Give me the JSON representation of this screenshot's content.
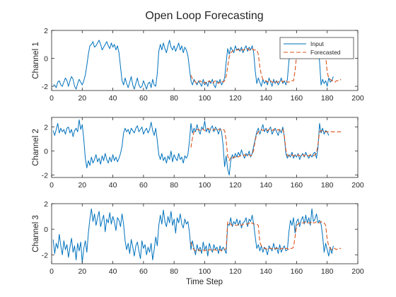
{
  "chart_data": {
    "type": "line",
    "title": "Open Loop Forecasting",
    "xlabel": "Time Step",
    "xlim": [
      0,
      200
    ],
    "xticks": [
      0,
      20,
      40,
      60,
      80,
      100,
      120,
      140,
      160,
      180,
      200
    ],
    "legend": {
      "position": "top-right",
      "subplot": 1,
      "entries": [
        "Input",
        "Forecasted"
      ]
    },
    "colors": {
      "input": "#0072BD",
      "forecast": "#D95319",
      "axis": "#262626",
      "background": "#ffffff"
    },
    "subplots": [
      {
        "ylabel": "Channel 1",
        "ylim": [
          -2.3,
          2
        ],
        "yticks": [
          -2,
          0,
          2
        ],
        "series": [
          {
            "name": "Input",
            "x_start": 1,
            "step": 1,
            "values": [
              -1.9,
              -1.9,
              -2.1,
              -1.7,
              -1.6,
              -1.9,
              -2.0,
              -1.7,
              -1.4,
              -1.6,
              -2.0,
              -1.6,
              -1.3,
              -1.5,
              -2.0,
              -2.2,
              -1.8,
              -1.5,
              -1.7,
              -1.9,
              -1.6,
              -1.2,
              -0.5,
              0.3,
              0.9,
              1.0,
              1.2,
              0.8,
              0.9,
              1.1,
              1.3,
              1.0,
              0.6,
              0.8,
              1.0,
              1.2,
              0.9,
              0.7,
              1.1,
              0.8,
              1.0,
              0.6,
              0.9,
              0.4,
              -0.6,
              -1.6,
              -1.9,
              -1.4,
              -1.8,
              -2.1,
              -1.7,
              -1.3,
              -1.9,
              -2.2,
              -1.8,
              -1.4,
              -1.9,
              -2.1,
              -2.0,
              -1.6,
              -1.9,
              -2.2,
              -1.8,
              -1.7,
              -2.1,
              -1.5,
              -1.9,
              -2.0,
              -1.1,
              0.5,
              1.0,
              0.6,
              1.1,
              0.7,
              0.4,
              0.9,
              1.3,
              0.8,
              0.6,
              0.9,
              0.5,
              0.8,
              1.1,
              0.6,
              0.9,
              0.4,
              0.8,
              0.6,
              0.2,
              -0.7,
              -1.6,
              -1.9,
              -1.5,
              -1.7,
              -1.9,
              -1.6,
              -1.8,
              -2.0,
              -1.5,
              -1.9,
              -1.7,
              -2.0,
              -1.6,
              -1.8,
              -1.5,
              -1.9,
              -2.1,
              -1.6,
              -1.8,
              -1.5,
              -1.9,
              -1.7,
              -1.4,
              -0.3,
              0.7,
              0.3,
              0.8,
              0.6,
              0.4,
              0.9,
              0.6,
              0.7,
              0.5,
              0.8,
              0.4,
              0.7,
              0.9,
              0.5,
              0.8,
              0.6,
              0.9,
              0.4,
              -0.9,
              -1.8,
              -1.4,
              -1.7,
              -2.0,
              -1.5,
              -1.8,
              -1.6,
              -1.9,
              -1.4,
              -1.7,
              -2.0,
              -1.5,
              -1.8,
              -1.6,
              -1.9,
              -1.7,
              -1.4,
              -1.8,
              -1.6,
              -1.9,
              -1.5,
              -0.2,
              0.7,
              0.4,
              0.8,
              0.6,
              0.3,
              0.7,
              0.5,
              0.9,
              0.4,
              0.7,
              0.6,
              0.8,
              0.4,
              0.7,
              0.5,
              0.8,
              0.6,
              0.3,
              0.7,
              -0.2,
              -1.9,
              -1.5,
              -1.8,
              -1.6,
              -2.0,
              -1.4,
              -1.7,
              -1.6,
              -1.3
            ]
          },
          {
            "name": "Forecasted",
            "x_start": 91,
            "step": 1,
            "values": [
              -1.2,
              -1.5,
              -1.6,
              -1.7,
              -1.8,
              -1.7,
              -1.6,
              -1.7,
              -1.8,
              -1.7,
              -1.8,
              -1.7,
              -1.6,
              -1.7,
              -1.8,
              -1.7,
              -1.6,
              -1.7,
              -1.8,
              -1.7,
              -1.6,
              -1.7,
              -1.6,
              -1.3,
              -0.6,
              0.1,
              0.4,
              0.5,
              0.6,
              0.6,
              0.6,
              0.6,
              0.7,
              0.6,
              0.6,
              0.6,
              0.7,
              0.7,
              0.6,
              0.6,
              0.7,
              0.6,
              0.6,
              0.6,
              0.3,
              -0.6,
              -1.2,
              -1.5,
              -1.6,
              -1.6,
              -1.7,
              -1.6,
              -1.6,
              -1.7,
              -1.7,
              -1.6,
              -1.7,
              -1.7,
              -1.6,
              -1.6,
              -1.7,
              -1.6,
              -1.6,
              -1.7,
              -1.7,
              -1.6,
              -1.6,
              -1.6,
              -0.9,
              0.2,
              0.5,
              0.6,
              0.6,
              0.6,
              0.6,
              0.6,
              0.7,
              0.6,
              0.6,
              0.6,
              0.6,
              0.6,
              0.6,
              0.6,
              0.6,
              0.6,
              0.6,
              0.6,
              0.2,
              -1.0,
              -1.4,
              -1.5,
              -1.6,
              -1.6,
              -1.7,
              -1.6,
              -1.6,
              -1.6,
              -1.5
            ]
          }
        ]
      },
      {
        "ylabel": "Channel 2",
        "ylim": [
          -2.2,
          2.8
        ],
        "yticks": [
          -2,
          0,
          2
        ],
        "series": [
          {
            "name": "Input",
            "x_start": 1,
            "step": 1,
            "values": [
              1.7,
              1.3,
              1.8,
              2.3,
              1.5,
              1.9,
              1.6,
              1.8,
              1.4,
              1.9,
              2.0,
              1.5,
              1.8,
              1.2,
              1.7,
              1.9,
              1.6,
              2.6,
              1.8,
              2.2,
              1.0,
              -0.6,
              -1.4,
              -0.8,
              -1.2,
              -0.5,
              -1.0,
              -0.7,
              -0.3,
              -0.9,
              -0.6,
              -1.1,
              -0.4,
              -0.8,
              -0.2,
              -0.7,
              -1.0,
              -0.5,
              -0.9,
              -0.3,
              -0.8,
              -0.5,
              -0.9,
              -0.6,
              -0.2,
              0.4,
              1.5,
              1.9,
              1.6,
              1.8,
              1.4,
              1.9,
              1.7,
              1.5,
              1.9,
              2.1,
              1.6,
              1.8,
              2.0,
              1.4,
              1.7,
              1.9,
              1.5,
              1.8,
              2.4,
              1.7,
              1.3,
              1.9,
              0.9,
              -0.3,
              -0.7,
              -0.2,
              -0.8,
              -0.5,
              -1.0,
              -0.4,
              -0.7,
              0.0,
              -0.9,
              -0.3,
              -0.6,
              -0.8,
              -0.2,
              -0.7,
              -0.5,
              -1.0,
              -0.4,
              -0.6,
              -0.3,
              0.8,
              2.3,
              1.5,
              1.9,
              1.6,
              2.2,
              1.7,
              1.4,
              2.0,
              1.8,
              2.5,
              1.6,
              1.9,
              1.5,
              1.9,
              2.1,
              1.6,
              2.0,
              1.8,
              1.4,
              1.9,
              1.6,
              0.5,
              -1.3,
              -0.4,
              -1.5,
              -2.0,
              -0.8,
              -0.3,
              -0.6,
              -0.2,
              -0.5,
              -0.1,
              -0.4,
              0.1,
              -0.3,
              -0.6,
              -0.2,
              -0.4,
              0.0,
              -0.5,
              -0.2,
              0.4,
              1.0,
              1.6,
              1.9,
              1.4,
              1.8,
              2.2,
              1.6,
              1.9,
              1.5,
              1.8,
              2.0,
              1.4,
              1.7,
              1.9,
              1.6,
              1.3,
              1.8,
              1.5,
              2.0,
              1.2,
              -0.2,
              -0.6,
              -0.3,
              -0.5,
              -0.1,
              -0.6,
              -0.3,
              -0.5,
              -0.2,
              -0.7,
              -0.4,
              -0.2,
              -0.5,
              -0.1,
              -0.4,
              -0.6,
              -0.3,
              -0.5,
              -0.2,
              -0.1,
              -0.6,
              0.3,
              2.3,
              1.5,
              1.9,
              1.4,
              1.7,
              1.6,
              1.3
            ]
          },
          {
            "name": "Forecasted",
            "x_start": 91,
            "step": 1,
            "values": [
              0.3,
              1.1,
              1.6,
              1.7,
              1.8,
              1.8,
              1.7,
              1.8,
              1.8,
              1.7,
              1.8,
              1.9,
              1.8,
              1.8,
              1.7,
              1.8,
              1.8,
              1.7,
              1.8,
              1.8,
              1.7,
              1.8,
              1.7,
              0.9,
              -0.4,
              -0.8,
              -0.5,
              -0.6,
              -0.5,
              -0.5,
              -0.4,
              -0.5,
              -0.4,
              -0.4,
              -0.4,
              -0.3,
              -0.4,
              -0.3,
              -0.3,
              -0.4,
              -0.3,
              0.1,
              0.9,
              1.4,
              1.6,
              1.7,
              1.8,
              1.7,
              1.8,
              1.8,
              1.7,
              1.8,
              1.7,
              1.7,
              1.8,
              1.7,
              1.7,
              1.8,
              1.7,
              1.7,
              1.8,
              1.3,
              0.1,
              -0.4,
              -0.4,
              -0.4,
              -0.3,
              -0.4,
              -0.4,
              -0.4,
              -0.3,
              -0.4,
              -0.4,
              -0.3,
              -0.4,
              -0.3,
              -0.4,
              -0.4,
              -0.3,
              -0.4,
              -0.4,
              -0.3,
              -0.2,
              0.6,
              1.6,
              1.7,
              1.7,
              1.6,
              1.6,
              1.6,
              1.6,
              1.6,
              1.6,
              1.6,
              1.6,
              1.6,
              1.6,
              1.6,
              1.6
            ]
          }
        ]
      },
      {
        "ylabel": "Channel 3",
        "ylim": [
          -2.7,
          2
        ],
        "yticks": [
          -2,
          0,
          2
        ],
        "series": [
          {
            "name": "Input",
            "x_start": 1,
            "step": 1,
            "values": [
              -0.8,
              -1.9,
              -1.1,
              -1.5,
              -0.4,
              -1.3,
              -2.0,
              -0.9,
              -1.6,
              -1.2,
              -2.2,
              -1.4,
              -0.7,
              -1.8,
              -1.3,
              -2.4,
              -1.1,
              -1.7,
              -1.0,
              -2.6,
              -1.5,
              -0.9,
              -1.8,
              -0.3,
              0.8,
              1.6,
              0.6,
              1.2,
              0.3,
              0.9,
              1.4,
              0.2,
              0.7,
              1.1,
              -0.2,
              0.8,
              0.5,
              1.3,
              0.4,
              1.0,
              0.6,
              -0.1,
              0.9,
              0.7,
              0.2,
              1.2,
              0.4,
              -0.9,
              -1.6,
              -1.1,
              -1.9,
              -0.8,
              -1.4,
              -2.1,
              -1.3,
              -1.0,
              -1.7,
              -2.3,
              -0.9,
              -1.5,
              -1.2,
              -2.0,
              -1.4,
              -1.8,
              -1.1,
              -2.4,
              -1.6,
              -0.6,
              -1.3,
              0.3,
              1.1,
              0.4,
              1.5,
              0.6,
              0.2,
              1.0,
              0.5,
              1.4,
              0.3,
              0.8,
              -0.3,
              0.9,
              0.5,
              1.2,
              0.4,
              0.1,
              0.8,
              0.4,
              0.6,
              -0.2,
              -1.6,
              -0.9,
              -1.5,
              -2.0,
              -1.2,
              -1.7,
              -1.4,
              -1.9,
              -1.0,
              -1.6,
              -1.3,
              -2.1,
              -1.1,
              -1.5,
              -1.8,
              -1.2,
              -1.6,
              -1.4,
              -1.9,
              -1.3,
              -1.7,
              -1.4,
              -1.6,
              -1.9,
              0.4,
              0.3,
              0.9,
              0.2,
              0.6,
              0.4,
              0.8,
              0.3,
              0.7,
              0.1,
              0.5,
              0.6,
              0.9,
              0.2,
              0.8,
              0.6,
              1.1,
              0.4,
              -0.6,
              -1.5,
              -1.2,
              -1.7,
              -1.3,
              -1.8,
              -1.4,
              -1.6,
              -2.0,
              -1.3,
              -1.5,
              -1.7,
              -1.1,
              -1.6,
              -1.4,
              -1.9,
              -1.2,
              -1.8,
              -1.5,
              -1.3,
              -1.7,
              -1.6,
              -0.2,
              0.7,
              0.3,
              0.9,
              -0.3,
              0.6,
              0.8,
              0.2,
              0.7,
              1.0,
              0.4,
              1.1,
              0.5,
              0.9,
              0.3,
              1.6,
              0.6,
              0.8,
              1.2,
              0.5,
              0.7,
              0.4,
              -0.5,
              -1.8,
              -1.1,
              -1.6,
              -2.1,
              -1.4,
              -1.9,
              -1.3
            ]
          },
          {
            "name": "Forecasted",
            "x_start": 91,
            "step": 1,
            "values": [
              -1.0,
              -1.4,
              -1.6,
              -1.7,
              -1.6,
              -1.6,
              -1.7,
              -1.6,
              -1.6,
              -1.7,
              -1.6,
              -1.7,
              -1.6,
              -1.6,
              -1.7,
              -1.6,
              -1.6,
              -1.7,
              -1.6,
              -1.6,
              -1.7,
              -1.6,
              -1.6,
              -1.5,
              0.6,
              0.5,
              0.4,
              0.3,
              0.3,
              0.3,
              0.3,
              0.4,
              0.4,
              0.3,
              0.4,
              0.4,
              0.4,
              0.4,
              0.5,
              0.4,
              0.5,
              0.4,
              0.4,
              0.4,
              0.3,
              -1.0,
              -1.3,
              -1.4,
              -1.5,
              -1.5,
              -1.6,
              -1.5,
              -1.5,
              -1.5,
              -1.6,
              -1.5,
              -1.5,
              -1.5,
              -1.6,
              -1.5,
              -1.5,
              -1.6,
              -1.5,
              -1.5,
              -1.6,
              -1.5,
              -1.5,
              -1.4,
              -0.6,
              0.3,
              0.4,
              0.5,
              0.5,
              0.5,
              0.5,
              0.6,
              0.5,
              0.5,
              0.5,
              0.6,
              0.5,
              0.5,
              0.6,
              0.5,
              0.5,
              0.6,
              0.5,
              0.5,
              0.3,
              -0.8,
              -1.3,
              -1.5,
              -1.6,
              -1.5,
              -1.5,
              -1.6,
              -1.5,
              -1.5,
              -1.5
            ]
          }
        ]
      }
    ]
  }
}
